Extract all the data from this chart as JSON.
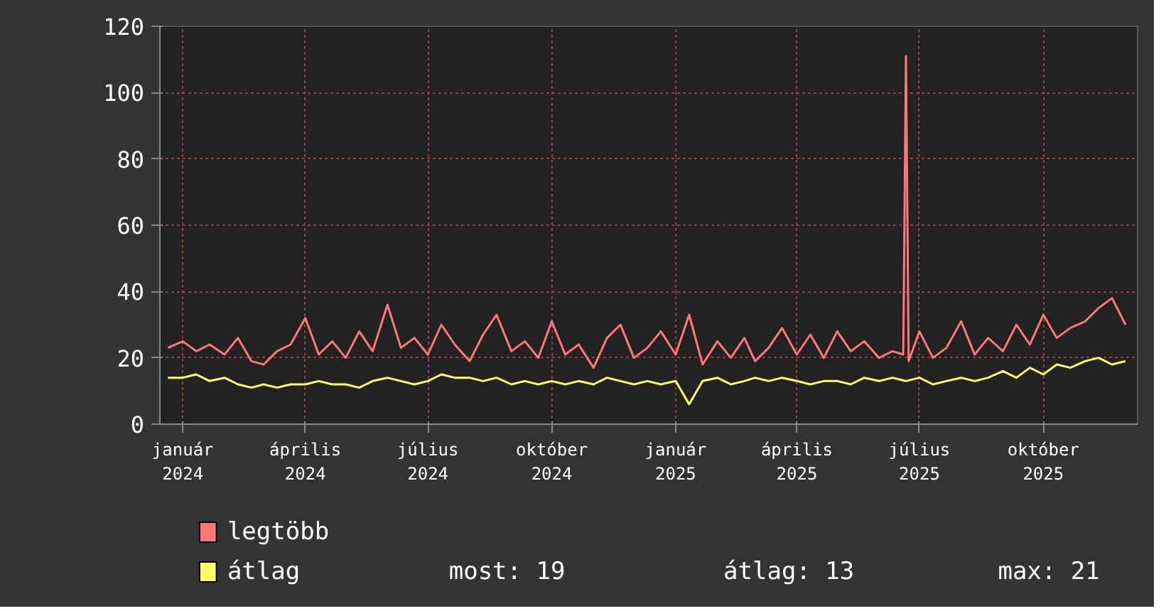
{
  "chart_data": {
    "type": "line",
    "xlim": [
      "2023-12-15",
      "2025-12-10"
    ],
    "ylim": [
      0,
      120
    ],
    "yticks": [
      0,
      20,
      40,
      60,
      80,
      100,
      120
    ],
    "xticks": [
      {
        "value": "2024-01-01",
        "label": "január 2024"
      },
      {
        "value": "2024-04-01",
        "label": "április 2024"
      },
      {
        "value": "2024-07-01",
        "label": "július 2024"
      },
      {
        "value": "2024-10-01",
        "label": "október 2024"
      },
      {
        "value": "2025-01-01",
        "label": "január 2025"
      },
      {
        "value": "2025-04-01",
        "label": "április 2025"
      },
      {
        "value": "2025-07-01",
        "label": "július 2025"
      },
      {
        "value": "2025-10-01",
        "label": "október 2025"
      }
    ],
    "grid": true,
    "legend": "bottom",
    "marker": "none",
    "line_style": "solid",
    "annotations": [
      "most: 19",
      "átlag: 13",
      "max: 21"
    ],
    "series": [
      {
        "name": "legtöbb",
        "color": "#ff7777",
        "x": [
          "2023-12-21",
          "2024-01-01",
          "2024-01-11",
          "2024-01-21",
          "2024-02-01",
          "2024-02-11",
          "2024-02-21",
          "2024-03-01",
          "2024-03-11",
          "2024-03-21",
          "2024-04-01",
          "2024-04-11",
          "2024-04-21",
          "2024-05-01",
          "2024-05-11",
          "2024-05-21",
          "2024-06-01",
          "2024-06-11",
          "2024-06-21",
          "2024-07-01",
          "2024-07-11",
          "2024-07-21",
          "2024-08-01",
          "2024-08-11",
          "2024-08-21",
          "2024-09-01",
          "2024-09-11",
          "2024-09-21",
          "2024-10-01",
          "2024-10-11",
          "2024-10-21",
          "2024-11-01",
          "2024-11-11",
          "2024-11-21",
          "2024-12-01",
          "2024-12-11",
          "2024-12-21",
          "2025-01-01",
          "2025-01-11",
          "2025-01-21",
          "2025-02-01",
          "2025-02-11",
          "2025-02-21",
          "2025-03-01",
          "2025-03-11",
          "2025-03-21",
          "2025-04-01",
          "2025-04-11",
          "2025-04-21",
          "2025-05-01",
          "2025-05-11",
          "2025-05-21",
          "2025-06-01",
          "2025-06-11",
          "2025-06-19",
          "2025-06-21",
          "2025-06-23",
          "2025-07-01",
          "2025-07-11",
          "2025-07-21",
          "2025-08-01",
          "2025-08-11",
          "2025-08-21",
          "2025-09-01",
          "2025-09-11",
          "2025-09-21",
          "2025-10-01",
          "2025-10-11",
          "2025-10-21",
          "2025-11-01",
          "2025-11-11",
          "2025-11-21",
          "2025-12-01"
        ],
        "values": [
          23,
          25,
          22,
          24,
          21,
          26,
          19,
          18,
          22,
          24,
          32,
          21,
          25,
          20,
          28,
          22,
          36,
          23,
          26,
          21,
          30,
          24,
          19,
          27,
          33,
          22,
          25,
          20,
          31,
          21,
          24,
          17,
          26,
          30,
          20,
          23,
          28,
          21,
          33,
          18,
          25,
          20,
          26,
          19,
          23,
          29,
          21,
          27,
          20,
          28,
          22,
          25,
          20,
          22,
          21,
          111,
          19,
          28,
          20,
          23,
          31,
          21,
          26,
          22,
          30,
          24,
          33,
          26,
          29,
          31,
          35,
          38,
          30
        ]
      },
      {
        "name": "átlag",
        "color": "#ffff66",
        "x": [
          "2023-12-21",
          "2024-01-01",
          "2024-01-11",
          "2024-01-21",
          "2024-02-01",
          "2024-02-11",
          "2024-02-21",
          "2024-03-01",
          "2024-03-11",
          "2024-03-21",
          "2024-04-01",
          "2024-04-11",
          "2024-04-21",
          "2024-05-01",
          "2024-05-11",
          "2024-05-21",
          "2024-06-01",
          "2024-06-11",
          "2024-06-21",
          "2024-07-01",
          "2024-07-11",
          "2024-07-21",
          "2024-08-01",
          "2024-08-11",
          "2024-08-21",
          "2024-09-01",
          "2024-09-11",
          "2024-09-21",
          "2024-10-01",
          "2024-10-11",
          "2024-10-21",
          "2024-11-01",
          "2024-11-11",
          "2024-11-21",
          "2024-12-01",
          "2024-12-11",
          "2024-12-21",
          "2025-01-01",
          "2025-01-11",
          "2025-01-21",
          "2025-02-01",
          "2025-02-11",
          "2025-02-21",
          "2025-03-01",
          "2025-03-11",
          "2025-03-21",
          "2025-04-01",
          "2025-04-11",
          "2025-04-21",
          "2025-05-01",
          "2025-05-11",
          "2025-05-21",
          "2025-06-01",
          "2025-06-11",
          "2025-06-21",
          "2025-07-01",
          "2025-07-11",
          "2025-07-21",
          "2025-08-01",
          "2025-08-11",
          "2025-08-21",
          "2025-09-01",
          "2025-09-11",
          "2025-09-21",
          "2025-10-01",
          "2025-10-11",
          "2025-10-21",
          "2025-11-01",
          "2025-11-11",
          "2025-11-21",
          "2025-12-01"
        ],
        "values": [
          14,
          14,
          15,
          13,
          14,
          12,
          11,
          12,
          11,
          12,
          12,
          13,
          12,
          12,
          11,
          13,
          14,
          13,
          12,
          13,
          15,
          14,
          14,
          13,
          14,
          12,
          13,
          12,
          13,
          12,
          13,
          12,
          14,
          13,
          12,
          13,
          12,
          13,
          6,
          13,
          14,
          12,
          13,
          14,
          13,
          14,
          13,
          12,
          13,
          13,
          12,
          14,
          13,
          14,
          13,
          14,
          12,
          13,
          14,
          13,
          14,
          16,
          14,
          17,
          15,
          18,
          17,
          19,
          20,
          18,
          19
        ]
      }
    ]
  }
}
